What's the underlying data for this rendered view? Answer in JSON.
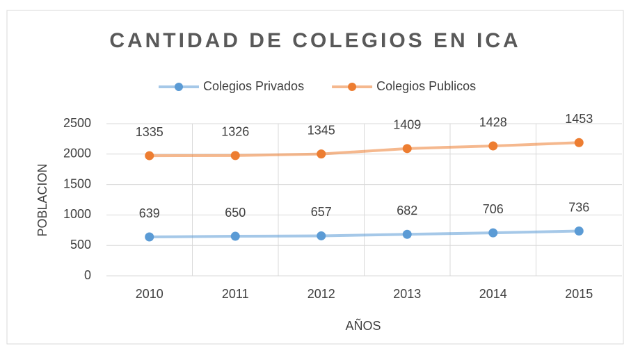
{
  "chart_data": {
    "type": "line",
    "stacked": true,
    "title": "CANTIDAD DE COLEGIOS EN ICA",
    "x_label": "AÑOS",
    "y_label": "POBLACION",
    "categories": [
      "2010",
      "2011",
      "2012",
      "2013",
      "2014",
      "2015"
    ],
    "series": [
      {
        "name": "Colegios Privados",
        "color": "#5b9bd5",
        "values": [
          639,
          650,
          657,
          682,
          706,
          736
        ]
      },
      {
        "name": "Colegios Publicos",
        "color": "#ed7d31",
        "values": [
          1335,
          1326,
          1345,
          1409,
          1428,
          1453
        ]
      }
    ],
    "ylim": [
      0,
      2500
    ],
    "yticks": [
      0,
      500,
      1000,
      1500,
      2000,
      2500
    ],
    "grid": true,
    "legend": "top"
  }
}
